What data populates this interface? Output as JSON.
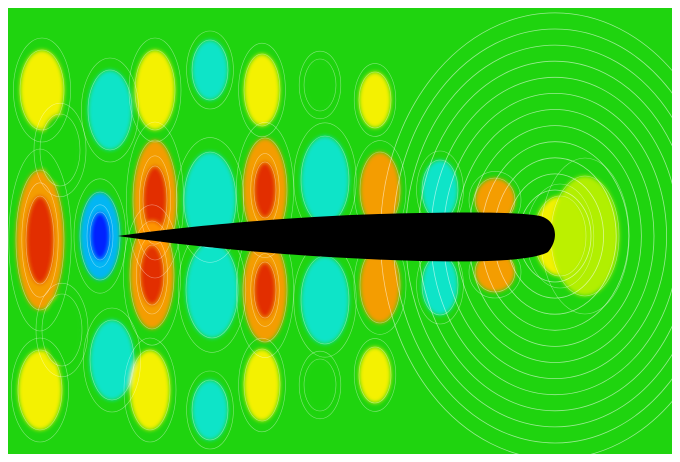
{
  "figure": {
    "kind": "pressure contour field around an airfoil",
    "background_color": "#1fd40f",
    "contour_line_color": "#ffffff",
    "airfoil_color": "#000000",
    "colormap": [
      "#0018ff",
      "#00b4ff",
      "#12e5d2",
      "#1fd40f",
      "#b8f000",
      "#fff200",
      "#ff9a00",
      "#e02a00"
    ]
  }
}
